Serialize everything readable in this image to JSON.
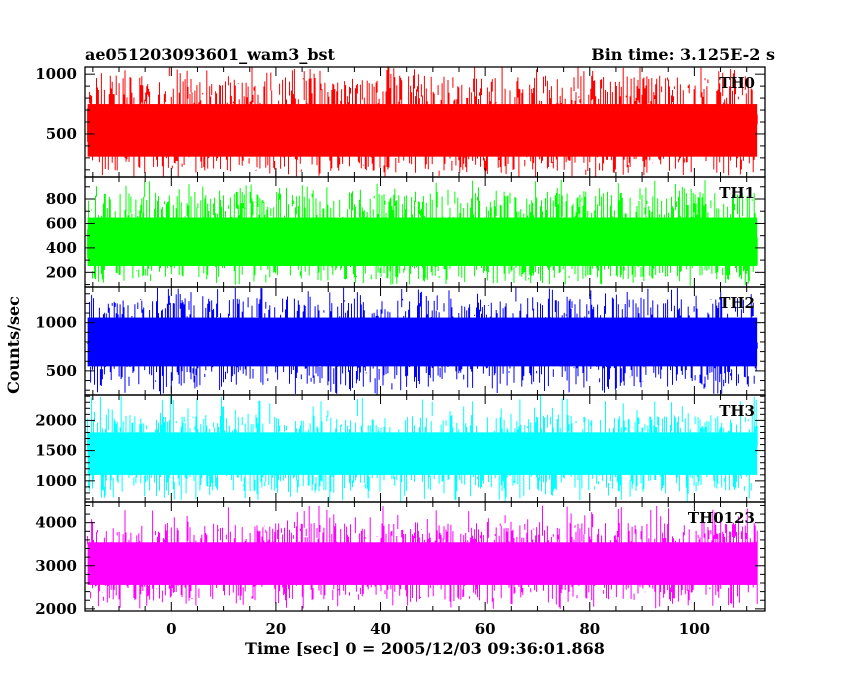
{
  "chart_data": {
    "type": "line",
    "title_left": "ae051203093601_wam3_bst",
    "title_right": "Bin time: 3.125E-2 s",
    "xlabel": "Time [sec] 0 = 2005/12/03 09:36:01.868",
    "ylabel": "Counts/sec",
    "xlim": [
      -16.5,
      113.5
    ],
    "data_x_range": [
      -16,
      112
    ],
    "x_ticks": [
      0,
      20,
      40,
      60,
      80,
      100
    ],
    "x_tick_labels": [
      "0",
      "20",
      "40",
      "60",
      "80",
      "100"
    ],
    "x_minor_step": 5,
    "panels": [
      {
        "name": "TH0",
        "color": "#ff0000",
        "ylim": [
          140,
          1060
        ],
        "mean": 530,
        "band": [
          190,
          990
        ],
        "spikes": [
          140,
          1060
        ],
        "y_major": [
          500,
          1000
        ],
        "y_tick_labels": [
          "500",
          "1000"
        ],
        "y_minor_step": 100
      },
      {
        "name": "TH1",
        "color": "#00ff00",
        "ylim": [
          80,
          980
        ],
        "mean": 450,
        "band": [
          140,
          860
        ],
        "spikes": [
          90,
          960
        ],
        "y_major": [
          200,
          400,
          600,
          800
        ],
        "y_tick_labels": [
          "200",
          "400",
          "600",
          "800"
        ],
        "y_minor_step": 100
      },
      {
        "name": "TH2",
        "color": "#0000ff",
        "ylim": [
          250,
          1370
        ],
        "mean": 800,
        "band": [
          340,
          1260
        ],
        "spikes": [
          250,
          1370
        ],
        "y_major": [
          500,
          1000
        ],
        "y_tick_labels": [
          "500",
          "1000"
        ],
        "y_minor_step": 100
      },
      {
        "name": "TH3",
        "color": "#00ffff",
        "ylim": [
          650,
          2420
        ],
        "mean": 1450,
        "band": [
          820,
          2100
        ],
        "spikes": [
          650,
          2420
        ],
        "y_major": [
          1000,
          1500,
          2000
        ],
        "y_tick_labels": [
          "1000",
          "1500",
          "2000"
        ],
        "y_minor_step": 100
      },
      {
        "name": "TH0123",
        "color": "#ff00ff",
        "ylim": [
          1950,
          4480
        ],
        "mean": 3050,
        "band": [
          2200,
          4000
        ],
        "spikes": [
          2000,
          4400
        ],
        "y_major": [
          2000,
          3000,
          4000
        ],
        "y_tick_labels": [
          "2000",
          "3000",
          "4000"
        ],
        "y_minor_step": 200
      }
    ]
  }
}
